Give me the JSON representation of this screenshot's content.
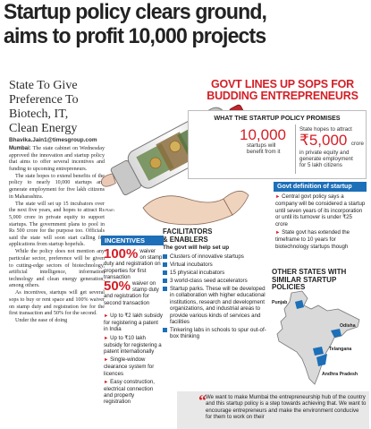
{
  "headline": {
    "line1": "Startup policy clears ground,",
    "line2": "aims to profit 10,000 projects"
  },
  "subhead": "State To Give Preference To Biotech, IT, Clean Energy",
  "byline": "Bhavika.Jain1@timesgroup.com",
  "body": {
    "p1_lead": "Mumbai:",
    "p1": " The state cabinet on Wednesday approved the innovation and startup policy that aims to offer several incentives and funding to upcoming entrepreneurs.",
    "p2": "The state hopes to extend benefits of the policy to nearly 10,000 startups and generate employment for five lakh citizens in Maharashtra.",
    "p3": "The state will set up 15 incubators over the next five years, and hopes to attract Rs 5,000 crore in private equity to support startups. The government plans to pool in Rs 500 crore for the purpose too. Officials said the state will soon start calling for applications from startup hopefuls.",
    "p4": "While the policy does not mention any particular sector, preference will be given to cutting-edge sectors of biotechnology, artificial intelligence, information technology and clean energy generation, among others.",
    "p5": "As incentives, startups will get several sops to buy or rent space and 100% waiver on stamp duty and registration fee for the first transaction and 50% for the second.",
    "p6": "Under the ease of doing"
  },
  "art_credit": "Ram",
  "govt_title": {
    "line1": "GOVT LINES UP SOPS FOR",
    "line2": "BUDDING ENTREPRENEURS"
  },
  "promises": {
    "title": "WHAT THE STARTUP POLICY PROMISES",
    "stat1_value": "10,000",
    "stat1_line1": "startups will",
    "stat1_line2": "benefit from it",
    "stat2_lead": "State hopes to attract",
    "stat2_value": "₹5,000",
    "stat2_unit": "crore",
    "stat2_line1": "in private equity and",
    "stat2_line2": "generate employment",
    "stat2_line3": "for 5 lakh citizens"
  },
  "definition": {
    "header": "Govt definition of startup",
    "items": [
      "Central govt policy says a company will be considered a startup until seven years of its incorporation or until its turnover is under ₹25 crore",
      "State govt has extended the timeframe to 10 years for biotechnology startups though"
    ]
  },
  "facilitators": {
    "title_line1": "FACILITATORS",
    "title_line2": "& ENABLERS",
    "subtitle": "The govt will help set up",
    "items": [
      "Clusters of innovative startups",
      "Virtual incubators",
      "15 physical incubators",
      "3 world-class seed accelerators",
      "Startup parks. These will be developed in collaboration with higher educational institutions, research and development organizations, and industrial areas to provide various kinds of services and facilities",
      "Tinkering labs in schools to spur out-of-box thinking"
    ]
  },
  "other_states": {
    "title_line1": "OTHER STATES WITH",
    "title_line2": "SIMILAR STARTUP",
    "title_line3": "POLICIES",
    "states": [
      "Punjab",
      "Odisha",
      "Telangana",
      "Andhra Pradesh"
    ]
  },
  "incentives": {
    "header": "INCENTIVES",
    "item1_value": "100%",
    "item1_text": "waiver on stamp duty and registration on properties for first transaction",
    "item2_value": "50%",
    "item2_text": "waiver on stamp duty and registration for second transaction",
    "items": [
      "Up to ₹2 lakh subsidy for registering a patent in India",
      "Up to ₹10 lakh subsidy for registering a patent internationally",
      "Single-window clearance system for licences",
      "Easy construction, electrical connection and property registration"
    ]
  },
  "quote": {
    "text": "We want to make Mumbai the entrepreneurship hub of the country and this startup policy is a step towards achieving that. We want to encourage entrepreneurs and make the environment conducive for them to work on their"
  },
  "colors": {
    "accent_red": "#d31f26",
    "accent_blue": "#1d6fb8"
  }
}
